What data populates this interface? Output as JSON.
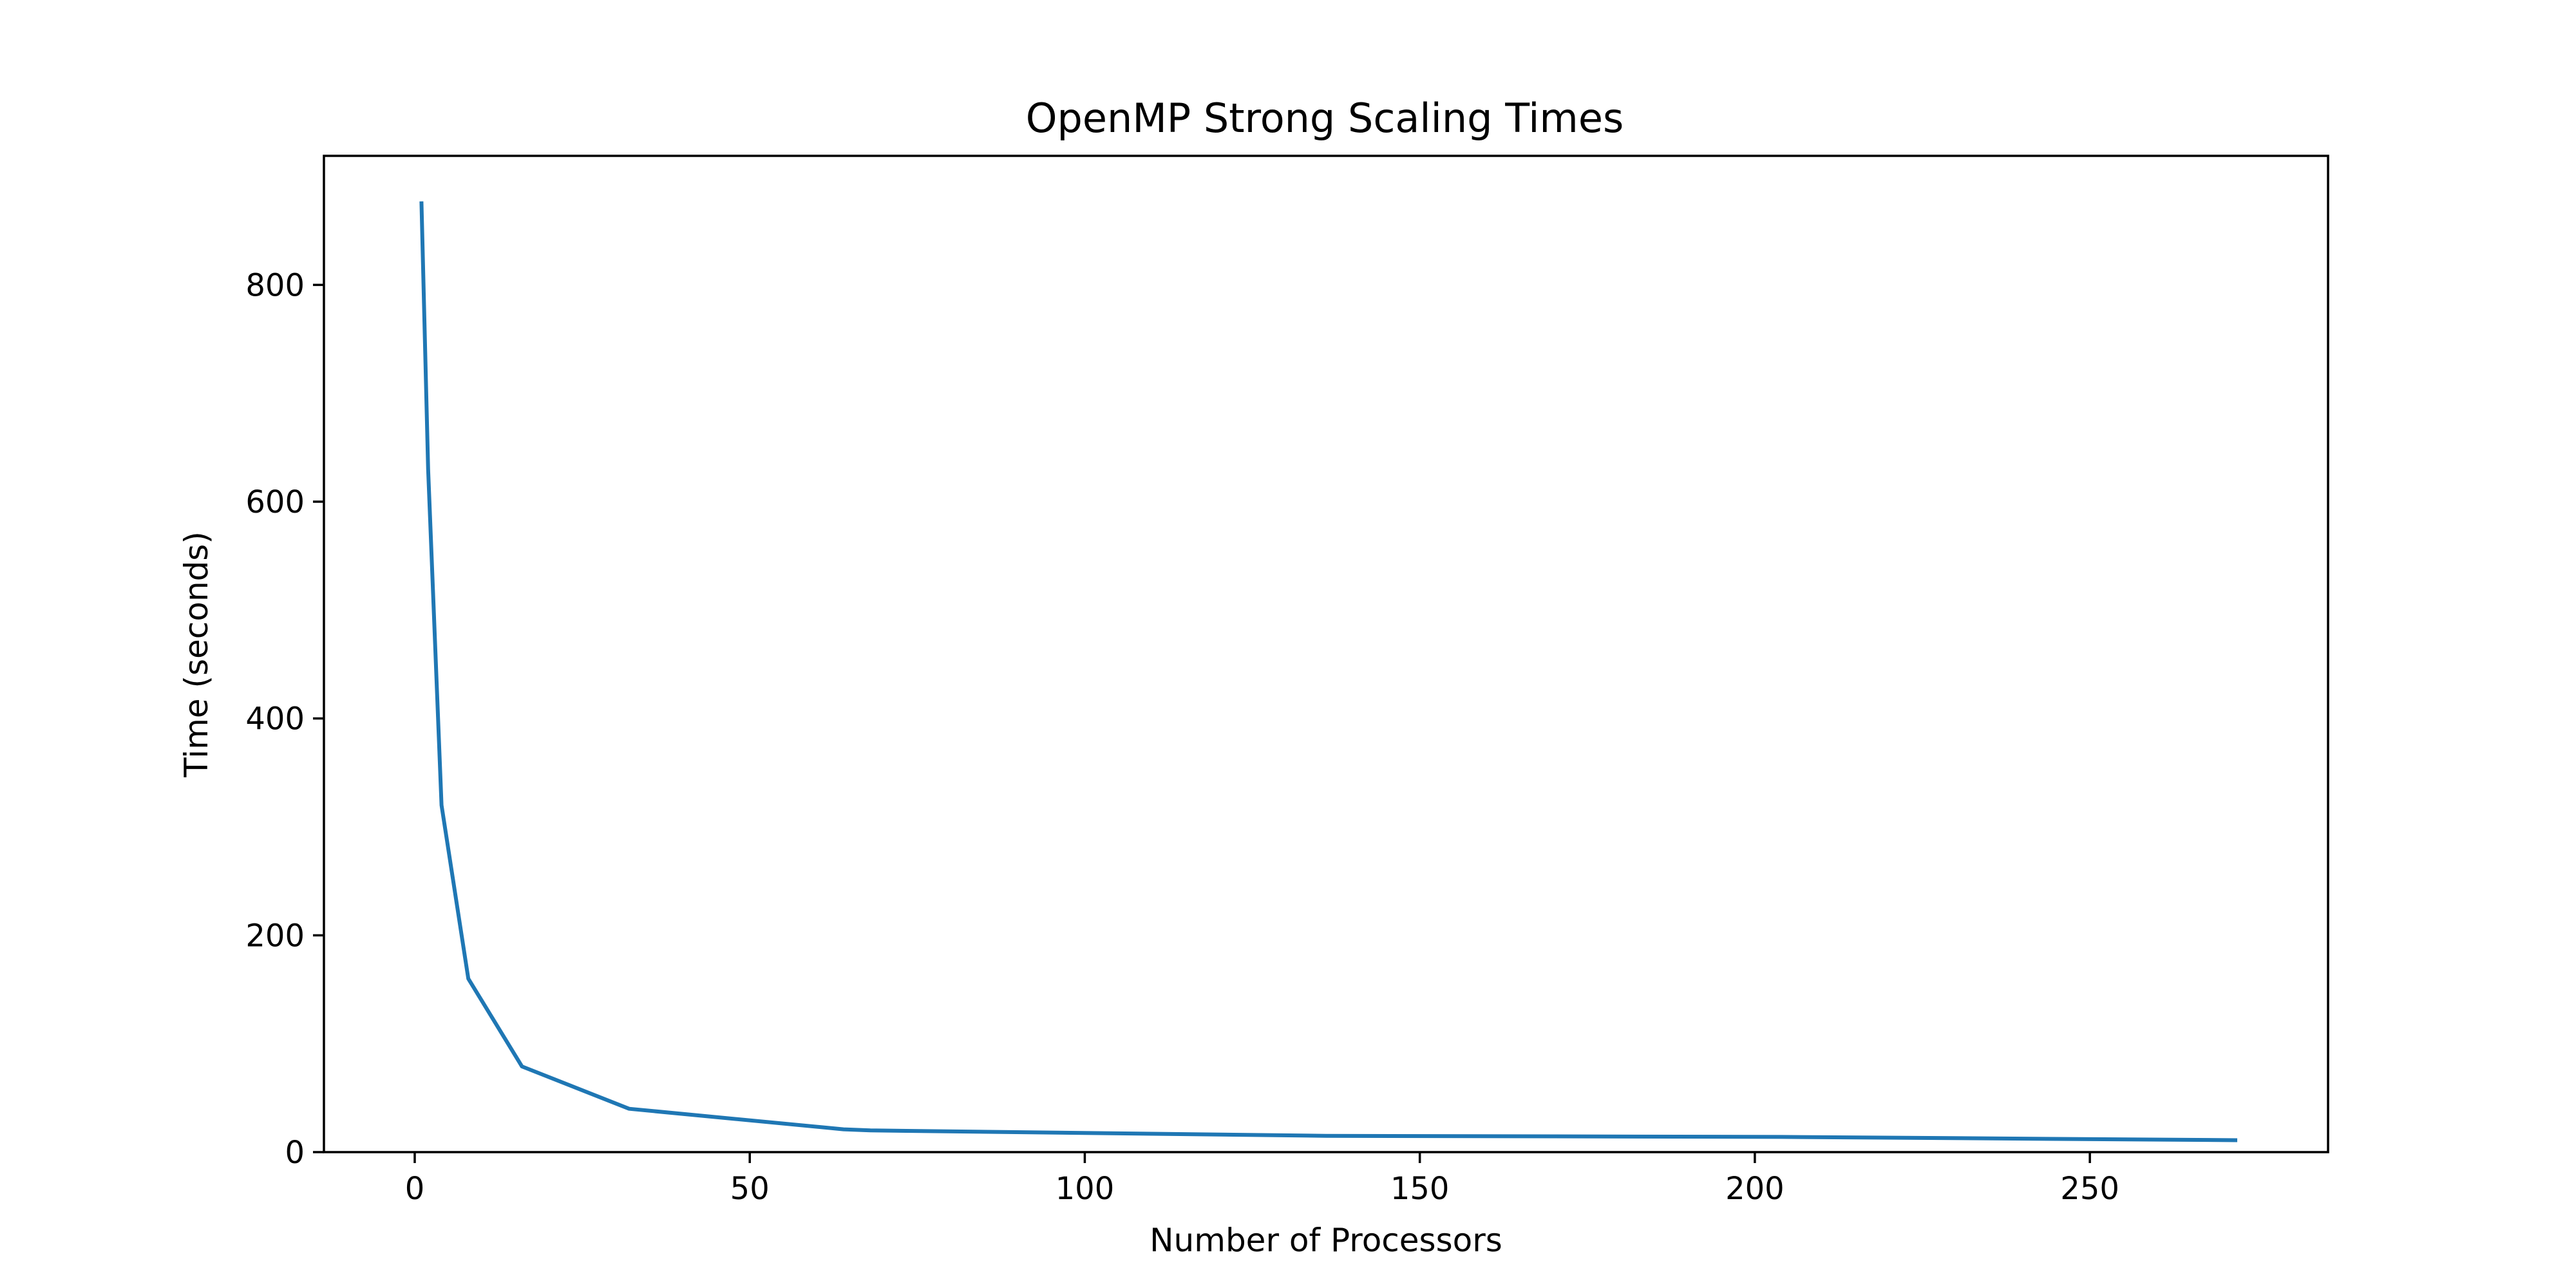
{
  "chart_data": {
    "type": "line",
    "title": "OpenMP Strong Scaling Times",
    "xlabel": "Number of Processors",
    "ylabel": "Time (seconds)",
    "xlim": [
      -13.55,
      285.55
    ],
    "ylim": [
      0,
      919
    ],
    "xticks": [
      0,
      50,
      100,
      150,
      200,
      250
    ],
    "yticks": [
      0,
      200,
      400,
      600,
      800
    ],
    "grid": false,
    "legend": "none",
    "series": [
      {
        "color": "#1f77b4",
        "x": [
          1,
          2,
          4,
          8,
          16,
          32,
          64,
          68,
          136,
          204,
          272
        ],
        "y": [
          877,
          630,
          320,
          160,
          79,
          40,
          21,
          20,
          15,
          14,
          11
        ]
      }
    ]
  }
}
